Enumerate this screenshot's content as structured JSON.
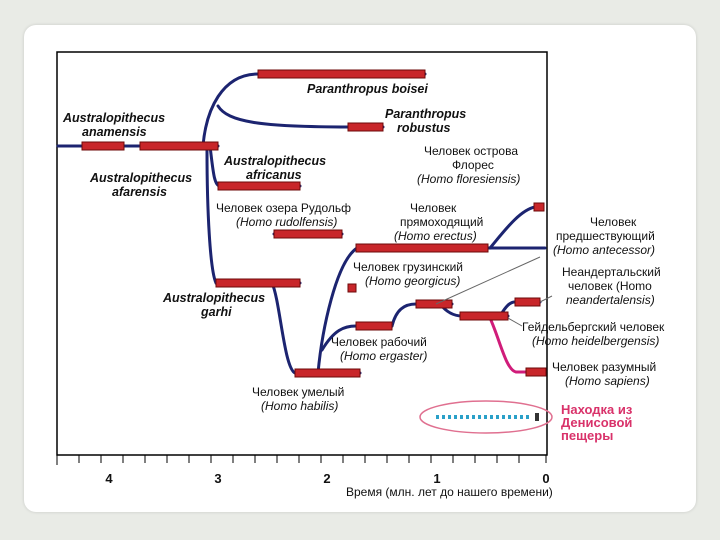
{
  "colors": {
    "branch": "#1c2470",
    "bar": "#c8262a",
    "bar_edge": "#6d0a0a",
    "sapiens_branch": "#d01c7a",
    "denisova_dots": "#2aa0c8",
    "denisova_text": "#d9326a",
    "ellipse": "#e07090"
  },
  "axis": {
    "ticks": [
      "4",
      "3",
      "2",
      "1",
      "0"
    ],
    "title": "Время (млн. лет до нашего времени)"
  },
  "species": {
    "anamensis": {
      "line1": "Australopithecus",
      "line2": "anamensis"
    },
    "afarensis": {
      "line1": "Australopithecus",
      "line2": "afarensis"
    },
    "boisei": {
      "line1": "Paranthropus boisei"
    },
    "robustus": {
      "line1": "Paranthropus",
      "line2": "robustus"
    },
    "africanus": {
      "line1": "Australopithecus",
      "line2": "africanus"
    },
    "rudolfensis": {
      "line1": "Человек озера Рудольф",
      "line2": "(Homo rudolfensis)"
    },
    "garhi": {
      "line1": "Australopithecus",
      "line2": "garhi"
    },
    "habilis": {
      "line1": "Человек умелый",
      "line2": "(Homo habilis)"
    },
    "ergaster": {
      "line1": "Человек рабочий",
      "line2": "(Homo ergaster)"
    },
    "georgicus": {
      "line1": "Человек грузинский",
      "line2": "(Homo georgicus)"
    },
    "erectus": {
      "line1": "Человек",
      "line2": "прямоходящий",
      "line3": "(Homo erectus)"
    },
    "floresiensis": {
      "line1": "Человек острова",
      "line2": "Флорес",
      "line3": "(Homo floresiensis)"
    },
    "antecessor": {
      "line1": "Человек",
      "line2": "предшествующий",
      "line3": "(Homo antecessor)"
    },
    "neanderthalensis": {
      "line1": "Неандертальский",
      "line2": "человек (Homo",
      "line3": "neandertalensis)"
    },
    "heidelbergensis": {
      "line1": "Гейдельбергский человек",
      "line2": "(Homo heidelbergensis)"
    },
    "sapiens": {
      "line1": "Человек разумный",
      "line2": "(Homo sapiens)"
    }
  },
  "denisova": {
    "line1": "Находка из",
    "line2": "Денисовой",
    "line3": "пещеры"
  }
}
